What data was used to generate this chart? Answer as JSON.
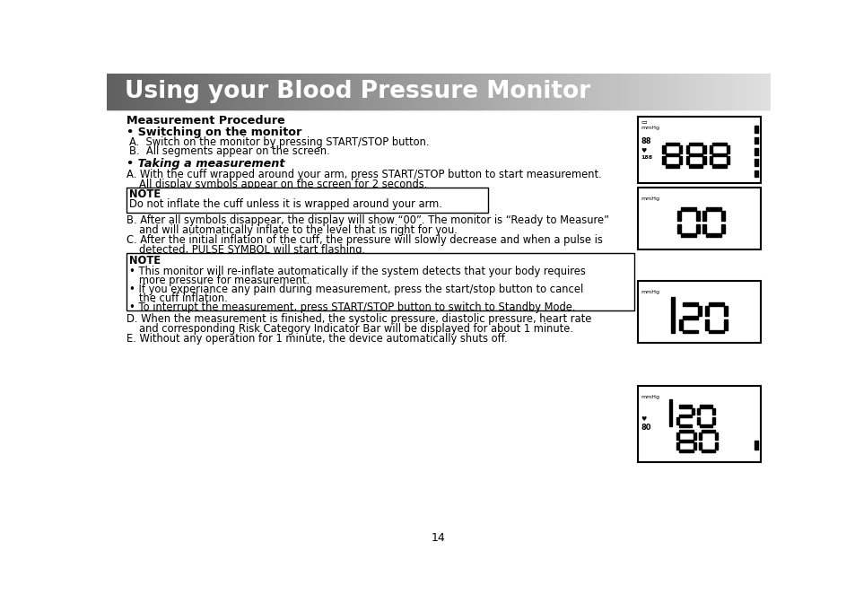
{
  "title": "Using your Blood Pressure Monitor",
  "title_color": "#ffffff",
  "title_fontsize": 19,
  "body_bg": "#ffffff",
  "text_color": "#000000",
  "page_number": "14",
  "section_heading": "Measurement Procedure",
  "bullet1_heading": "Switching on the monitor",
  "bullet1_lines": [
    "A.  Switch on the monitor by pressing START/STOP button.",
    "B.  All segments appear on the screen."
  ],
  "bullet2_heading": "Taking a measurement",
  "note1_title": "NOTE",
  "note1_body": "Do not inflate the cuff unless it is wrapped around your arm.",
  "note2_title": "NOTE",
  "note2_bullets": [
    "This monitor will re-inflate automatically if the system detects that your body requires",
    "  more pressure for measurement.",
    "If you experiance any pain during measurement, press the start/stop button to cancel",
    "  the cuff inflation.",
    "To interrupt the measurement, press START/STOP button to switch to Standby Mode."
  ]
}
